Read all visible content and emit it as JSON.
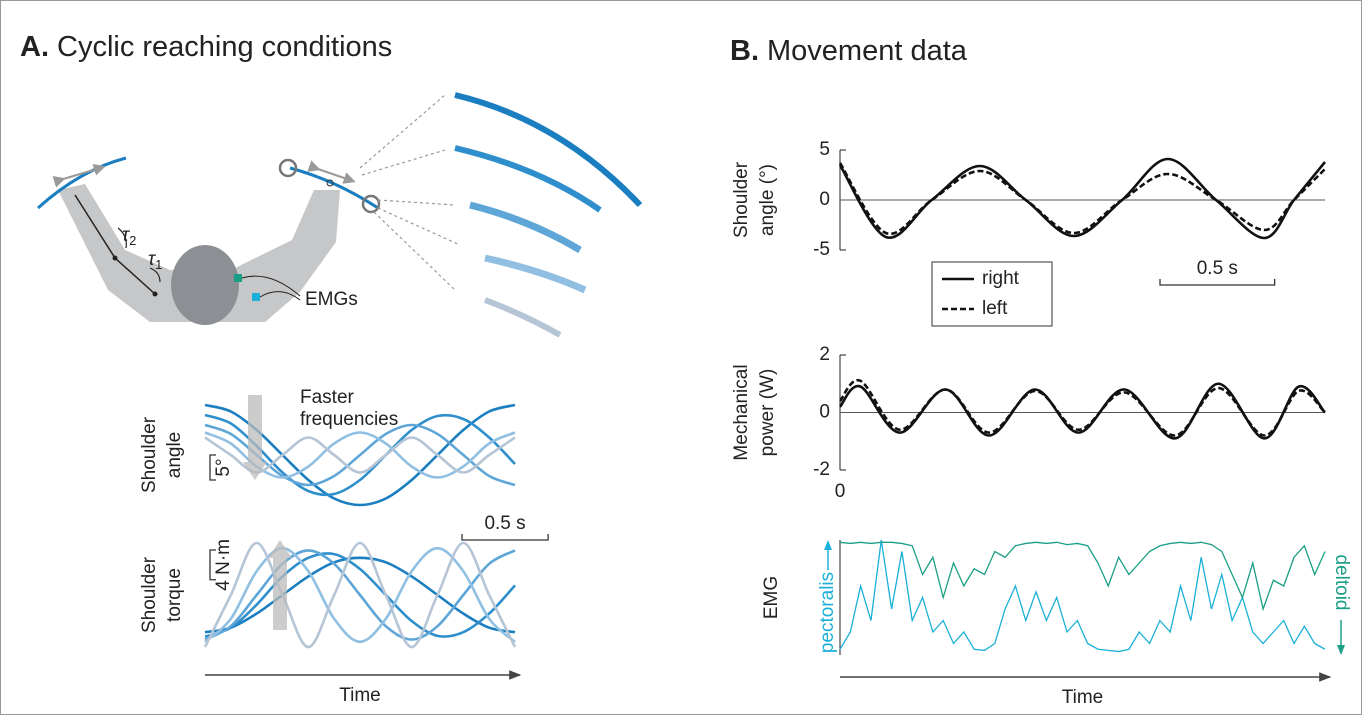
{
  "panels": [
    {
      "label": "A.",
      "title": "Cyclic reaching conditions"
    },
    {
      "label": "B.",
      "title": "Movement data"
    }
  ],
  "diagram": {
    "torque_labels": [
      {
        "symbol": "τ",
        "subscript": "2"
      },
      {
        "symbol": "τ",
        "subscript": "1"
      }
    ],
    "sensor_label": "EMGs"
  },
  "chart_data": [
    {
      "type": "line",
      "y_label": [
        "Shoulder",
        "angle"
      ],
      "annotation": [
        "Faster",
        "frequencies"
      ],
      "x": [
        0,
        0.15,
        0.3,
        0.45,
        0.6,
        0.75,
        0.9,
        1.05,
        1.2,
        1.35,
        1.5,
        1.65,
        1.8
      ],
      "xlim": [
        0,
        1.8
      ],
      "ylim": [
        -10,
        10
      ],
      "scale_bars": [
        {
          "value": 5,
          "label": "5°",
          "axis": "y"
        },
        {
          "value": 0.5,
          "label": "0.5 s",
          "axis": "x"
        }
      ],
      "series": [
        {
          "color": "#1a7ec0",
          "values": [
            10,
            8.7,
            5,
            0,
            -5,
            -8.7,
            -10,
            -8.7,
            -5,
            0,
            5,
            8.7,
            10
          ]
        },
        {
          "color": "#2e8fcc",
          "values": [
            8,
            6.3,
            1.8,
            -3.5,
            -7.2,
            -7.8,
            -5,
            0,
            5,
            7.8,
            7.2,
            3.5,
            -1.8
          ]
        },
        {
          "color": "#5ea6d8",
          "values": [
            6,
            4.2,
            0,
            -4.2,
            -6,
            -4.2,
            0,
            4.2,
            6,
            4.2,
            0,
            -4.2,
            -6
          ]
        },
        {
          "color": "#90bfe2",
          "values": [
            4.5,
            2.3,
            -2.3,
            -4.5,
            -2.3,
            2.3,
            4.5,
            2.3,
            -2.3,
            -4.5,
            -2.3,
            2.3,
            4.5
          ]
        },
        {
          "color": "#b6c5d6",
          "values": [
            3.5,
            0,
            -3.5,
            0,
            3.5,
            0,
            -3.5,
            0,
            3.5,
            0,
            -3.5,
            0,
            3.5
          ]
        }
      ]
    },
    {
      "type": "line",
      "y_label": [
        "Shoulder",
        "torque"
      ],
      "x_label": "Time",
      "x": [
        0,
        0.15,
        0.3,
        0.45,
        0.6,
        0.75,
        0.9,
        1.05,
        1.2,
        1.35,
        1.5,
        1.65,
        1.8
      ],
      "xlim": [
        0,
        1.8
      ],
      "ylim": [
        -7,
        7
      ],
      "scale_bars": [
        {
          "value": 4,
          "label": "4 N·m",
          "axis": "y"
        }
      ],
      "series": [
        {
          "color": "#1a7ec0",
          "values": [
            -5,
            -4.4,
            -2.5,
            0,
            2.5,
            4.4,
            5,
            4.4,
            2.5,
            0,
            -2.5,
            -4.4,
            -5
          ]
        },
        {
          "color": "#2e8fcc",
          "values": [
            -5.6,
            -4.4,
            -1.3,
            2.5,
            5,
            5.5,
            3.5,
            0,
            -3.5,
            -5.5,
            -5,
            -2.5,
            1.3
          ]
        },
        {
          "color": "#5ea6d8",
          "values": [
            -6,
            -4.2,
            0,
            4.2,
            6,
            4.2,
            0,
            -4.2,
            -6,
            -4.2,
            0,
            4.2,
            6
          ]
        },
        {
          "color": "#90bfe2",
          "values": [
            -6.3,
            -3.2,
            3.2,
            6.3,
            3.2,
            -3.2,
            -6.3,
            -3.2,
            3.2,
            6.3,
            3.2,
            -3.2,
            -6.3
          ]
        },
        {
          "color": "#b6c5d6",
          "values": [
            -7,
            0,
            7,
            0,
            -7,
            0,
            7,
            0,
            -7,
            0,
            7,
            0,
            -7
          ]
        }
      ]
    },
    {
      "type": "line",
      "y_label": [
        "Shoulder",
        "angle (°)"
      ],
      "xlim": [
        0,
        2.115
      ],
      "ylim": [
        -5,
        5
      ],
      "yticks": [
        -5,
        0,
        5
      ],
      "zero_line": true,
      "legend": "below",
      "x": [
        0,
        0.2,
        0.4,
        0.61,
        0.81,
        1.02,
        1.23,
        1.43,
        1.64,
        1.85,
        1.98,
        2.115
      ],
      "scale_bars": [
        {
          "value": 0.5,
          "label": "0.5 s",
          "axis": "x"
        }
      ],
      "series": [
        {
          "name": "right",
          "color": "#111111",
          "line_style": "solid",
          "values": [
            3.5,
            -3.7,
            0,
            3.4,
            0,
            -3.6,
            0,
            4.1,
            0,
            -3.8,
            0,
            3.8
          ]
        },
        {
          "name": "left",
          "color": "#111111",
          "line_style": "dashed",
          "values": [
            3.7,
            -3.3,
            0,
            2.9,
            0,
            -3.3,
            0,
            2.6,
            0,
            -3,
            0,
            3.1
          ]
        }
      ]
    },
    {
      "type": "line",
      "y_label": [
        "Mechanical",
        "power (W)"
      ],
      "xlim": [
        0,
        2.115
      ],
      "ylim": [
        -2,
        2
      ],
      "yticks": [
        -2,
        0,
        2
      ],
      "xticks": [
        0
      ],
      "zero_line": true,
      "x": [
        0,
        0.09,
        0.26,
        0.46,
        0.65,
        0.85,
        1.04,
        1.24,
        1.46,
        1.65,
        1.85,
        2,
        2.115
      ],
      "series": [
        {
          "name": "right",
          "color": "#111111",
          "line_style": "solid",
          "values": [
            0.2,
            0.9,
            -0.7,
            0.8,
            -0.8,
            0.8,
            -0.7,
            0.8,
            -0.9,
            1,
            -0.9,
            0.9,
            0
          ]
        },
        {
          "name": "left",
          "color": "#111111",
          "line_style": "dashed",
          "values": [
            0.4,
            1.1,
            -0.6,
            0.8,
            -0.7,
            0.75,
            -0.6,
            0.7,
            -0.8,
            0.85,
            -0.8,
            0.75,
            0
          ]
        }
      ]
    },
    {
      "type": "line",
      "y_label": [
        "EMG"
      ],
      "x_label": "Time",
      "xlim": [
        0,
        2.115
      ],
      "ylim": [
        0,
        1
      ],
      "interpolation": "linear",
      "x": [
        0,
        0.045,
        0.09,
        0.135,
        0.18,
        0.225,
        0.27,
        0.315,
        0.36,
        0.405,
        0.45,
        0.495,
        0.54,
        0.585,
        0.63,
        0.675,
        0.72,
        0.765,
        0.81,
        0.855,
        0.9,
        0.945,
        0.99,
        1.035,
        1.08,
        1.125,
        1.17,
        1.215,
        1.26,
        1.305,
        1.35,
        1.395,
        1.44,
        1.485,
        1.53,
        1.575,
        1.62,
        1.665,
        1.71,
        1.755,
        1.8,
        1.845,
        1.89,
        1.935,
        1.98,
        2.025,
        2.07,
        2.115
      ],
      "series": [
        {
          "name": "pectoralis",
          "color": "#1ab0d8",
          "direction": "up",
          "values": [
            0.05,
            0.2,
            0.6,
            0.3,
            1,
            0.4,
            0.9,
            0.3,
            0.5,
            0.2,
            0.3,
            0.1,
            0.2,
            0.05,
            0.04,
            0.1,
            0.4,
            0.6,
            0.3,
            0.55,
            0.3,
            0.5,
            0.2,
            0.3,
            0.1,
            0.05,
            0.04,
            0.03,
            0.05,
            0.2,
            0.1,
            0.3,
            0.2,
            0.6,
            0.3,
            0.85,
            0.4,
            0.7,
            0.3,
            0.5,
            0.2,
            0.1,
            0.2,
            0.3,
            0.1,
            0.25,
            0.1,
            0.05
          ]
        },
        {
          "name": "deltoid",
          "color": "#1a9e85",
          "direction": "down",
          "values": [
            0.02,
            0.03,
            0.02,
            0.03,
            0.02,
            0.02,
            0.03,
            0.05,
            0.3,
            0.15,
            0.5,
            0.2,
            0.4,
            0.25,
            0.3,
            0.1,
            0.15,
            0.05,
            0.03,
            0.02,
            0.03,
            0.02,
            0.04,
            0.03,
            0.05,
            0.2,
            0.4,
            0.15,
            0.3,
            0.2,
            0.1,
            0.05,
            0.03,
            0.02,
            0.03,
            0.02,
            0.04,
            0.1,
            0.3,
            0.5,
            0.2,
            0.6,
            0.35,
            0.4,
            0.15,
            0.05,
            0.3,
            0.1
          ]
        }
      ]
    }
  ]
}
